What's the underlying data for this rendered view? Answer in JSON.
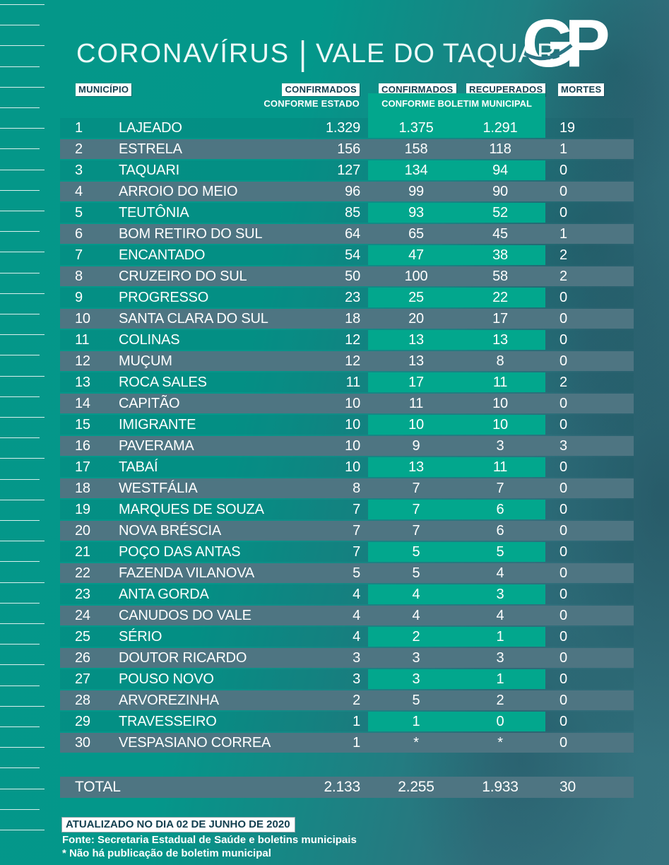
{
  "page": {
    "title": {
      "part1": "CORONAVÍRUS",
      "separator": "|",
      "part2": "VALE DO TAQUARI"
    },
    "logo": "GP"
  },
  "table": {
    "headers": {
      "municipio": "MUNICÍPIO",
      "confirmados_estado": "CONFIRMADOS",
      "conforme_estado": "CONFORME ESTADO",
      "confirmados_municipal": "CONFIRMADOS",
      "recuperados": "RECUPERADOS",
      "conforme_boletim_municipal": "CONFORME BOLETIM MUNICIPAL",
      "mortes": "MORTES"
    }
  },
  "chart_data": {
    "type": "table",
    "title": "CORONAVÍRUS | VALE DO TAQUARI",
    "columns": [
      "#",
      "MUNICÍPIO",
      "CONFIRMADOS CONFORME ESTADO",
      "CONFIRMADOS CONFORME BOLETIM MUNICIPAL",
      "RECUPERADOS CONFORME BOLETIM MUNICIPAL",
      "MORTES"
    ],
    "rows": [
      {
        "rank": "1",
        "municipio": "LAJEADO",
        "confirmados_estado": "1.329",
        "confirmados_municipal": "1.375",
        "recuperados": "1.291",
        "mortes": "19"
      },
      {
        "rank": "2",
        "municipio": "ESTRELA",
        "confirmados_estado": "156",
        "confirmados_municipal": "158",
        "recuperados": "118",
        "mortes": "1"
      },
      {
        "rank": "3",
        "municipio": "TAQUARI",
        "confirmados_estado": "127",
        "confirmados_municipal": "134",
        "recuperados": "94",
        "mortes": "0"
      },
      {
        "rank": "4",
        "municipio": "ARROIO DO MEIO",
        "confirmados_estado": "96",
        "confirmados_municipal": "99",
        "recuperados": "90",
        "mortes": "0"
      },
      {
        "rank": "5",
        "municipio": "TEUTÔNIA",
        "confirmados_estado": "85",
        "confirmados_municipal": "93",
        "recuperados": "52",
        "mortes": "0"
      },
      {
        "rank": "6",
        "municipio": "BOM RETIRO DO SUL",
        "confirmados_estado": "64",
        "confirmados_municipal": "65",
        "recuperados": "45",
        "mortes": "1"
      },
      {
        "rank": "7",
        "municipio": "ENCANTADO",
        "confirmados_estado": "54",
        "confirmados_municipal": "47",
        "recuperados": "38",
        "mortes": "2"
      },
      {
        "rank": "8",
        "municipio": "CRUZEIRO DO SUL",
        "confirmados_estado": "50",
        "confirmados_municipal": "100",
        "recuperados": "58",
        "mortes": "2"
      },
      {
        "rank": "9",
        "municipio": "PROGRESSO",
        "confirmados_estado": "23",
        "confirmados_municipal": "25",
        "recuperados": "22",
        "mortes": "0"
      },
      {
        "rank": "10",
        "municipio": "SANTA CLARA DO SUL",
        "confirmados_estado": "18",
        "confirmados_municipal": "20",
        "recuperados": "17",
        "mortes": "0"
      },
      {
        "rank": "11",
        "municipio": "COLINAS",
        "confirmados_estado": "12",
        "confirmados_municipal": "13",
        "recuperados": "13",
        "mortes": "0"
      },
      {
        "rank": "12",
        "municipio": "MUÇUM",
        "confirmados_estado": "12",
        "confirmados_municipal": "13",
        "recuperados": "8",
        "mortes": "0"
      },
      {
        "rank": "13",
        "municipio": "ROCA SALES",
        "confirmados_estado": "11",
        "confirmados_municipal": "17",
        "recuperados": "11",
        "mortes": "2"
      },
      {
        "rank": "14",
        "municipio": "CAPITÃO",
        "confirmados_estado": "10",
        "confirmados_municipal": "11",
        "recuperados": "10",
        "mortes": "0"
      },
      {
        "rank": "15",
        "municipio": "IMIGRANTE",
        "confirmados_estado": "10",
        "confirmados_municipal": "10",
        "recuperados": "10",
        "mortes": "0"
      },
      {
        "rank": "16",
        "municipio": "PAVERAMA",
        "confirmados_estado": "10",
        "confirmados_municipal": "9",
        "recuperados": "3",
        "mortes": "3"
      },
      {
        "rank": "17",
        "municipio": "TABAÍ",
        "confirmados_estado": "10",
        "confirmados_municipal": "13",
        "recuperados": "11",
        "mortes": "0"
      },
      {
        "rank": "18",
        "municipio": "WESTFÁLIA",
        "confirmados_estado": "8",
        "confirmados_municipal": "7",
        "recuperados": "7",
        "mortes": "0"
      },
      {
        "rank": "19",
        "municipio": "MARQUES DE SOUZA",
        "confirmados_estado": "7",
        "confirmados_municipal": "7",
        "recuperados": "6",
        "mortes": "0"
      },
      {
        "rank": "20",
        "municipio": "NOVA BRÉSCIA",
        "confirmados_estado": "7",
        "confirmados_municipal": "7",
        "recuperados": "6",
        "mortes": "0"
      },
      {
        "rank": "21",
        "municipio": "POÇO DAS ANTAS",
        "confirmados_estado": "7",
        "confirmados_municipal": "5",
        "recuperados": "5",
        "mortes": "0"
      },
      {
        "rank": "22",
        "municipio": "FAZENDA VILANOVA",
        "confirmados_estado": "5",
        "confirmados_municipal": "5",
        "recuperados": "4",
        "mortes": "0"
      },
      {
        "rank": "23",
        "municipio": "ANTA GORDA",
        "confirmados_estado": "4",
        "confirmados_municipal": "4",
        "recuperados": "3",
        "mortes": "0"
      },
      {
        "rank": "24",
        "municipio": "CANUDOS DO VALE",
        "confirmados_estado": "4",
        "confirmados_municipal": "4",
        "recuperados": "4",
        "mortes": "0"
      },
      {
        "rank": "25",
        "municipio": "SÉRIO",
        "confirmados_estado": "4",
        "confirmados_municipal": "2",
        "recuperados": "1",
        "mortes": "0"
      },
      {
        "rank": "26",
        "municipio": "DOUTOR RICARDO",
        "confirmados_estado": "3",
        "confirmados_municipal": "3",
        "recuperados": "3",
        "mortes": "0"
      },
      {
        "rank": "27",
        "municipio": "POUSO NOVO",
        "confirmados_estado": "3",
        "confirmados_municipal": "3",
        "recuperados": "1",
        "mortes": "0"
      },
      {
        "rank": "28",
        "municipio": "ARVOREZINHA",
        "confirmados_estado": "2",
        "confirmados_municipal": "5",
        "recuperados": "2",
        "mortes": "0"
      },
      {
        "rank": "29",
        "municipio": "TRAVESSEIRO",
        "confirmados_estado": "1",
        "confirmados_municipal": "1",
        "recuperados": "0",
        "mortes": "0"
      },
      {
        "rank": "30",
        "municipio": "VESPASIANO CORREA",
        "confirmados_estado": "1",
        "confirmados_municipal": "*",
        "recuperados": "*",
        "mortes": "0"
      }
    ],
    "total": {
      "label": "TOTAL",
      "confirmados_estado": "2.133",
      "confirmados_municipal": "2.255",
      "recuperados": "1.933",
      "mortes": "30"
    }
  },
  "footer": {
    "updated": "ATUALIZADO NO DIA 02 DE JUNHO DE 2020",
    "source": "Fonte: Secretaria Estadual de Saúde e boletins municipais",
    "note": "* Não há publicação de boletim municipal"
  },
  "colors": {
    "background_teal": "#03978a",
    "background_muted_right": "#36737f",
    "row_slate": "#4e7582",
    "municipal_green": "#02a78d",
    "header_label_bg": "#ffffff",
    "header_label_text": "#123f4f",
    "text_white": "#ffffff"
  }
}
